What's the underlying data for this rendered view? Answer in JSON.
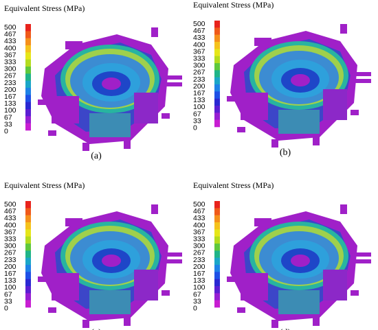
{
  "title": "Equivalent Stress (MPa)",
  "legend_labels": [
    500,
    467,
    433,
    400,
    367,
    333,
    300,
    267,
    233,
    200,
    167,
    133,
    100,
    67,
    33,
    0
  ],
  "legend_colors": [
    "#e8231c",
    "#f05a1a",
    "#f5901b",
    "#f5c21c",
    "#e6e619",
    "#b4dc1e",
    "#5fc83c",
    "#1fb488",
    "#1aa6c8",
    "#1e82e6",
    "#1e50e6",
    "#2a28d2",
    "#5a1ed2",
    "#961ed2",
    "#c81ed2"
  ],
  "panels": [
    {
      "title": "Equivalent Stress (MPa)",
      "caption": "(a)"
    },
    {
      "title": "Equivalent Stress (MPa)",
      "caption": "(b)"
    },
    {
      "title": "Equivalent Stress (MPa)",
      "caption": "(c)"
    },
    {
      "title": "Equivalent Stress (MPa)",
      "caption": "(d)"
    }
  ]
}
